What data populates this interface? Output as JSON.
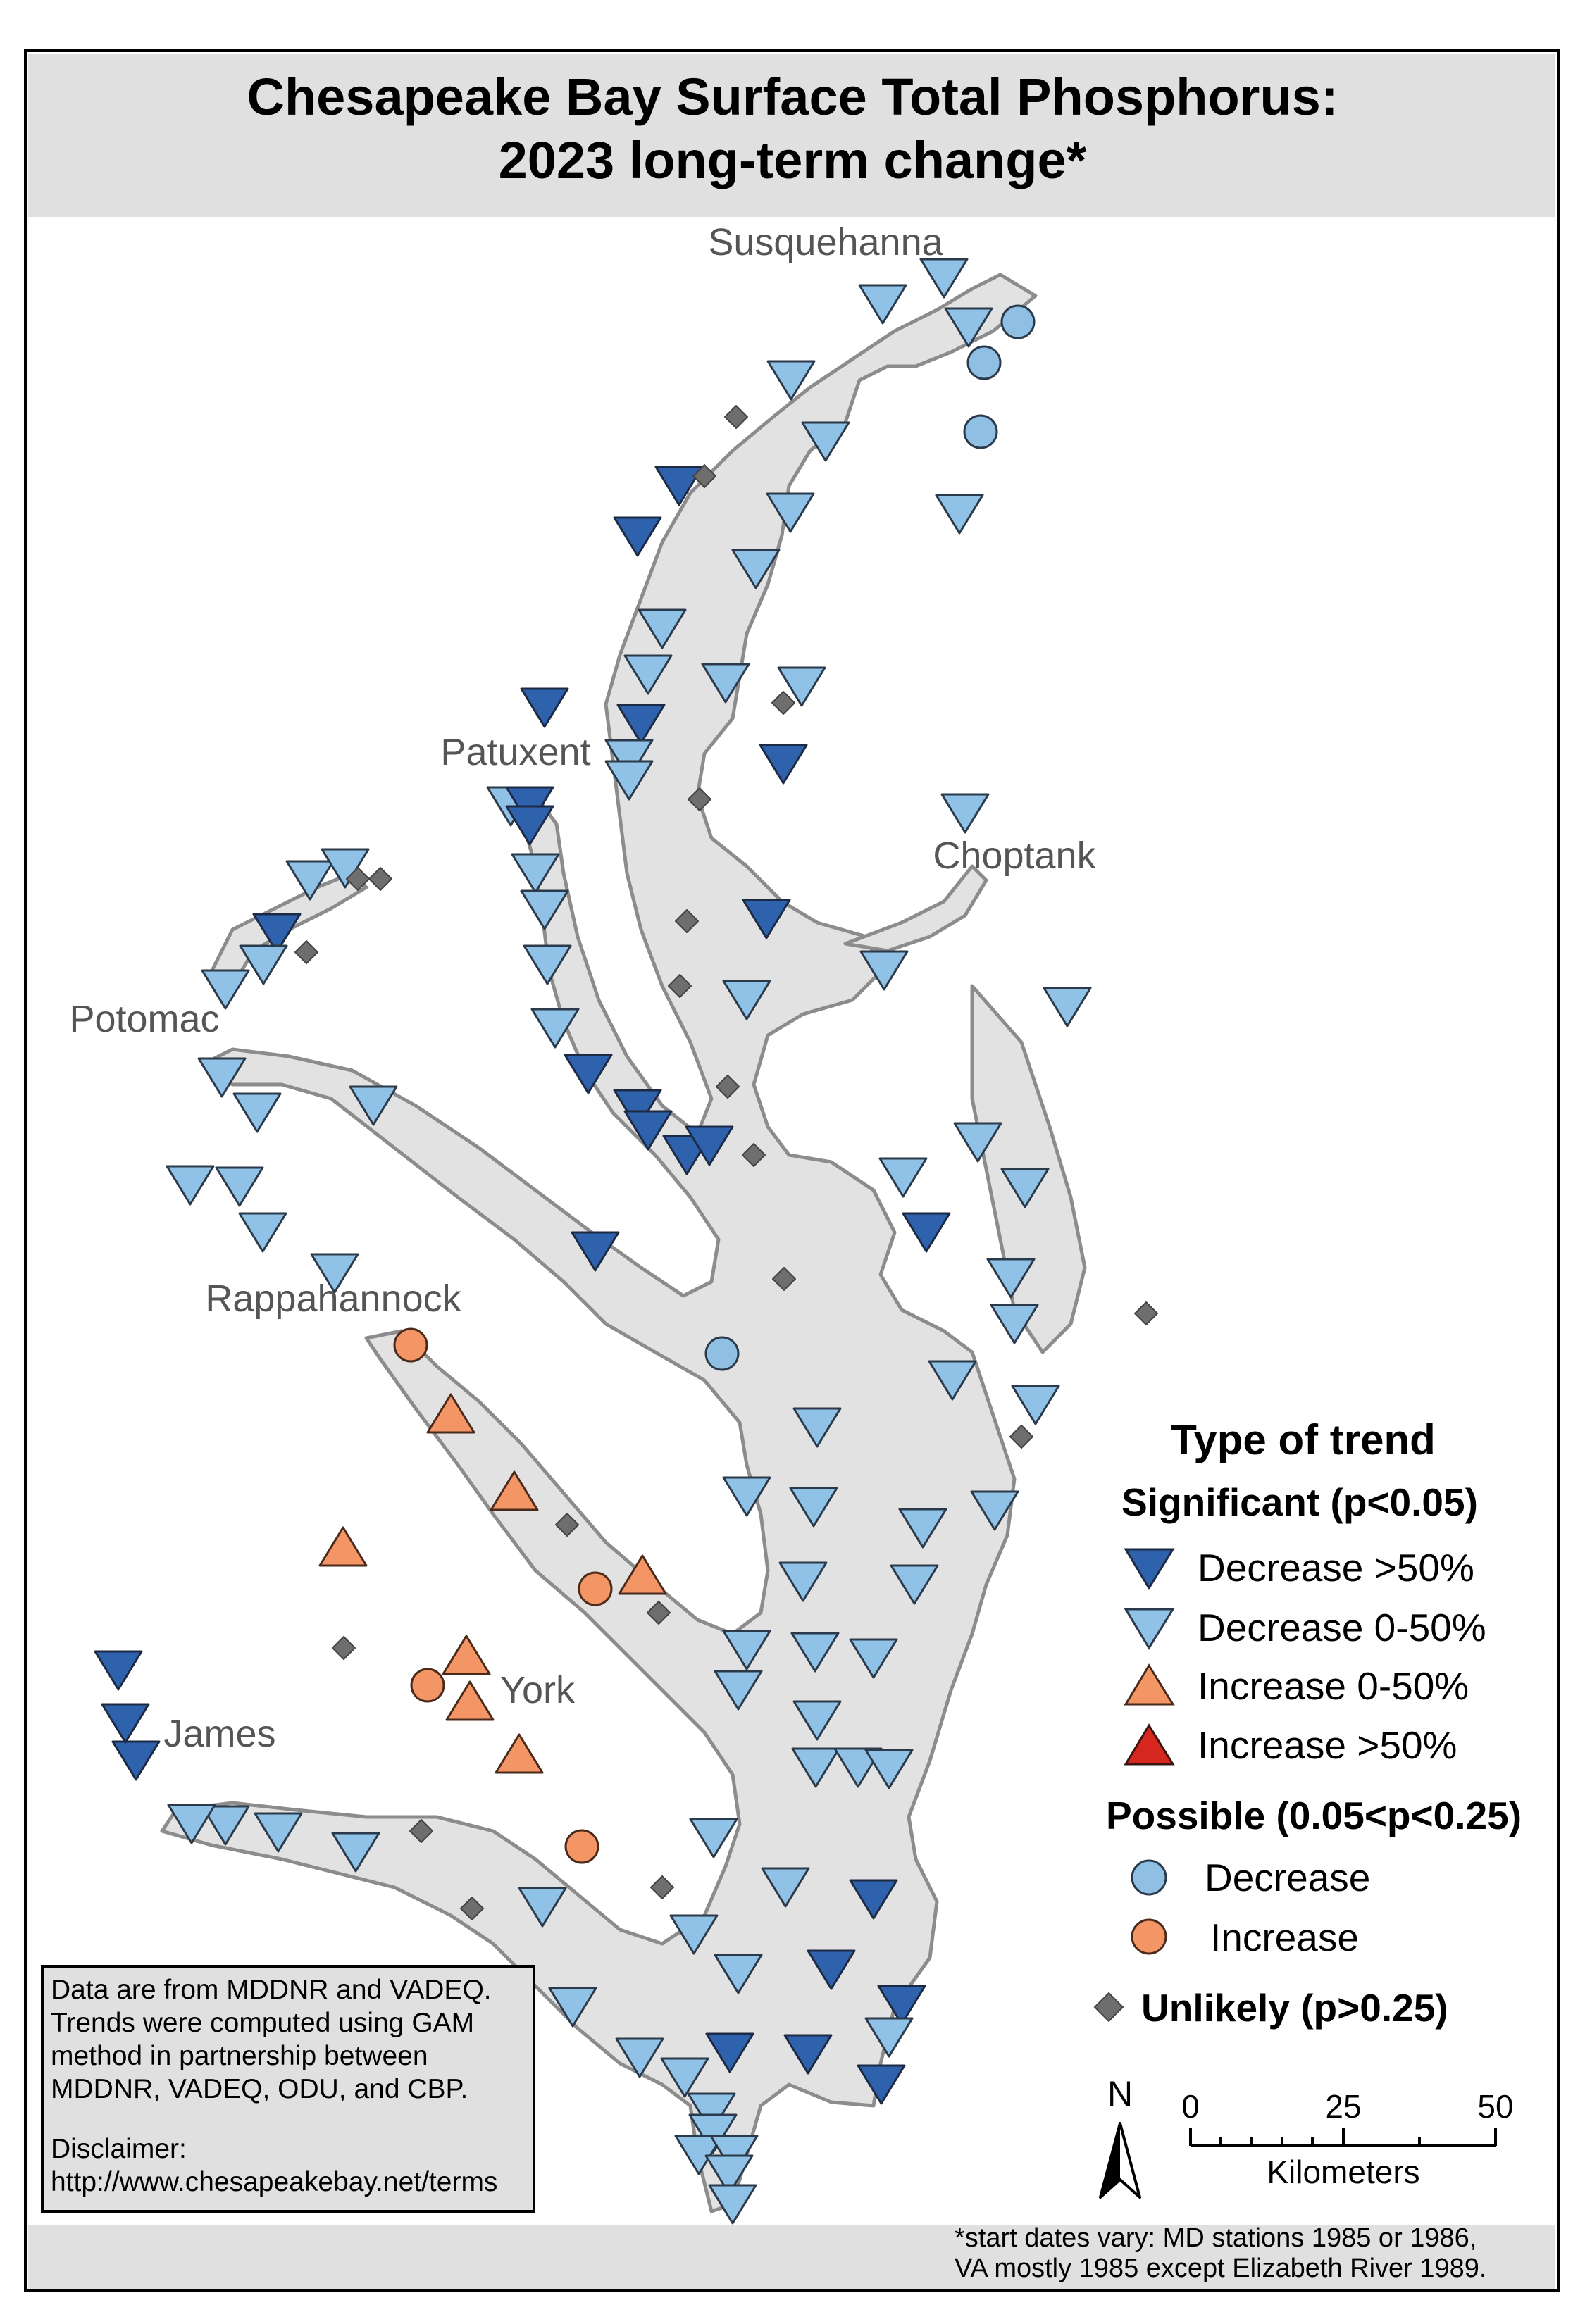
{
  "title": {
    "line1": "Chesapeake Bay Surface Total Phosphorus:",
    "line2": "2023 long-term change*"
  },
  "rivers": {
    "susquehanna": "Susquehanna",
    "patuxent": "Patuxent",
    "choptank": "Choptank",
    "potomac": "Potomac",
    "rappahannock": "Rappahannock",
    "york": "York",
    "james": "James"
  },
  "legend": {
    "heading": "Type of trend",
    "significant": "Significant (p<0.05)",
    "dec_gt50": "Decrease >50%",
    "dec_0_50": "Decrease 0-50%",
    "inc_0_50": "Increase 0-50%",
    "inc_gt50": "Increase >50%",
    "possible": "Possible (0.05<p<0.25)",
    "possible_dec": "Decrease",
    "possible_inc": "Increase",
    "unlikely": "Unlikely (p>0.25)"
  },
  "scalebar": {
    "ticks": [
      "0",
      "25",
      "50"
    ],
    "unit": "Kilometers"
  },
  "north_arrow": {
    "label": "N",
    "icon": "north-arrow-icon"
  },
  "data_note": {
    "lines": [
      "Data are from MDDNR and VADEQ.",
      "Trends were computed using GAM",
      "method in partnership between",
      "MDDNR, VADEQ, ODU, and CBP."
    ],
    "disclaimer_label": "Disclaimer:",
    "disclaimer_url": "http://www.chesapeakebay.net/terms"
  },
  "footnote": {
    "line1": "*start dates vary: MD stations 1985 or 1986,",
    "line2": "VA mostly 1985 except Elizabeth River 1989."
  },
  "colors": {
    "water": "#e2e2e2",
    "shore": "#8c8c8c",
    "title_band": "#e0e0e0",
    "dec_gt50": "#2f62ad",
    "dec_0_50": "#90c1e6",
    "inc_0_50": "#f39565",
    "inc_gt50": "#d6271f",
    "possible_dec": "#8fbfe3",
    "possible_inc": "#f39565",
    "unlikely": "#6e6e6e"
  },
  "stations": [
    {
      "t": "dec_0_50",
      "p": [
        1340,
        395
      ]
    },
    {
      "t": "dec_0_50",
      "p": [
        1253,
        432
      ]
    },
    {
      "t": "dec_0_50",
      "p": [
        1375,
        465
      ]
    },
    {
      "t": "possible_dec",
      "p": [
        1445,
        457
      ]
    },
    {
      "t": "possible_dec",
      "p": [
        1397,
        515
      ]
    },
    {
      "t": "dec_0_50",
      "p": [
        1123,
        540
      ]
    },
    {
      "t": "unlikely",
      "p": [
        1045,
        592
      ]
    },
    {
      "t": "dec_0_50",
      "p": [
        1172,
        627
      ]
    },
    {
      "t": "possible_dec",
      "p": [
        1392,
        613
      ]
    },
    {
      "t": "dec_gt50",
      "p": [
        964,
        690
      ]
    },
    {
      "t": "unlikely",
      "p": [
        1000,
        676
      ]
    },
    {
      "t": "dec_0_50",
      "p": [
        1122,
        728
      ]
    },
    {
      "t": "dec_0_50",
      "p": [
        1362,
        730
      ]
    },
    {
      "t": "dec_gt50",
      "p": [
        905,
        762
      ]
    },
    {
      "t": "dec_0_50",
      "p": [
        1073,
        808
      ]
    },
    {
      "t": "dec_0_50",
      "p": [
        940,
        893
      ]
    },
    {
      "t": "dec_0_50",
      "p": [
        920,
        958
      ]
    },
    {
      "t": "dec_0_50",
      "p": [
        1030,
        970
      ]
    },
    {
      "t": "dec_0_50",
      "p": [
        1138,
        975
      ]
    },
    {
      "t": "dec_gt50",
      "p": [
        773,
        1005
      ]
    },
    {
      "t": "dec_gt50",
      "p": [
        910,
        1028
      ]
    },
    {
      "t": "unlikely",
      "p": [
        1112,
        998
      ]
    },
    {
      "t": "dec_0_50",
      "p": [
        893,
        1078
      ]
    },
    {
      "t": "dec_0_50",
      "p": [
        893,
        1108
      ]
    },
    {
      "t": "dec_gt50",
      "p": [
        1112,
        1085
      ]
    },
    {
      "t": "dec_0_50",
      "p": [
        725,
        1145
      ]
    },
    {
      "t": "dec_gt50",
      "p": [
        752,
        1145
      ]
    },
    {
      "t": "dec_gt50",
      "p": [
        752,
        1172
      ]
    },
    {
      "t": "unlikely",
      "p": [
        993,
        1135
      ]
    },
    {
      "t": "dec_0_50",
      "p": [
        1370,
        1155
      ]
    },
    {
      "t": "dec_0_50",
      "p": [
        760,
        1240
      ]
    },
    {
      "t": "dec_0_50",
      "p": [
        773,
        1292
      ]
    },
    {
      "t": "unlikely",
      "p": [
        975,
        1308
      ]
    },
    {
      "t": "dec_gt50",
      "p": [
        1088,
        1305
      ]
    },
    {
      "t": "dec_0_50",
      "p": [
        1255,
        1378
      ]
    },
    {
      "t": "dec_0_50",
      "p": [
        777,
        1370
      ]
    },
    {
      "t": "unlikely",
      "p": [
        965,
        1400
      ]
    },
    {
      "t": "dec_0_50",
      "p": [
        1060,
        1420
      ]
    },
    {
      "t": "dec_0_50",
      "p": [
        1515,
        1430
      ]
    },
    {
      "t": "dec_0_50",
      "p": [
        788,
        1460
      ]
    },
    {
      "t": "dec_gt50",
      "p": [
        835,
        1525
      ]
    },
    {
      "t": "unlikely",
      "p": [
        1033,
        1543
      ]
    },
    {
      "t": "dec_gt50",
      "p": [
        905,
        1575
      ]
    },
    {
      "t": "dec_gt50",
      "p": [
        920,
        1605
      ]
    },
    {
      "t": "dec_gt50",
      "p": [
        975,
        1640
      ]
    },
    {
      "t": "dec_gt50",
      "p": [
        1007,
        1627
      ]
    },
    {
      "t": "unlikely",
      "p": [
        1070,
        1640
      ]
    },
    {
      "t": "dec_0_50",
      "p": [
        1282,
        1672
      ]
    },
    {
      "t": "dec_0_50",
      "p": [
        1388,
        1622
      ]
    },
    {
      "t": "dec_0_50",
      "p": [
        1455,
        1687
      ]
    },
    {
      "t": "dec_gt50",
      "p": [
        1315,
        1750
      ]
    },
    {
      "t": "dec_gt50",
      "p": [
        845,
        1777
      ]
    },
    {
      "t": "unlikely",
      "p": [
        1113,
        1816
      ]
    },
    {
      "t": "dec_0_50",
      "p": [
        1435,
        1815
      ]
    },
    {
      "t": "dec_0_50",
      "p": [
        1440,
        1880
      ]
    },
    {
      "t": "unlikely",
      "p": [
        1627,
        1865
      ]
    },
    {
      "t": "possible_dec",
      "p": [
        1025,
        1922
      ]
    },
    {
      "t": "dec_0_50",
      "p": [
        1352,
        1960
      ]
    },
    {
      "t": "dec_0_50",
      "p": [
        1470,
        1995
      ]
    },
    {
      "t": "unlikely",
      "p": [
        1450,
        2040
      ]
    },
    {
      "t": "dec_0_50",
      "p": [
        1160,
        2027
      ]
    },
    {
      "t": "dec_0_50",
      "p": [
        1060,
        2125
      ]
    },
    {
      "t": "dec_0_50",
      "p": [
        1155,
        2140
      ]
    },
    {
      "t": "dec_0_50",
      "p": [
        1310,
        2170
      ]
    },
    {
      "t": "dec_0_50",
      "p": [
        1412,
        2145
      ]
    },
    {
      "t": "dec_0_50",
      "p": [
        1140,
        2246
      ]
    },
    {
      "t": "dec_0_50",
      "p": [
        1298,
        2250
      ]
    },
    {
      "t": "dec_0_50",
      "p": [
        1060,
        2343
      ]
    },
    {
      "t": "dec_0_50",
      "p": [
        1157,
        2346
      ]
    },
    {
      "t": "dec_0_50",
      "p": [
        1240,
        2355
      ]
    },
    {
      "t": "dec_0_50",
      "p": [
        1048,
        2400
      ]
    },
    {
      "t": "dec_0_50",
      "p": [
        1160,
        2443
      ]
    },
    {
      "t": "dec_0_50",
      "p": [
        1158,
        2510
      ]
    },
    {
      "t": "dec_0_50",
      "p": [
        1218,
        2510
      ]
    },
    {
      "t": "dec_0_50",
      "p": [
        1262,
        2512
      ]
    },
    {
      "t": "dec_0_50",
      "p": [
        1013,
        2610
      ]
    },
    {
      "t": "dec_0_50",
      "p": [
        1115,
        2680
      ]
    },
    {
      "t": "dec_gt50",
      "p": [
        1240,
        2697
      ]
    },
    {
      "t": "dec_0_50",
      "p": [
        985,
        2747
      ]
    },
    {
      "t": "dec_0_50",
      "p": [
        1048,
        2803
      ]
    },
    {
      "t": "dec_gt50",
      "p": [
        1180,
        2797
      ]
    },
    {
      "t": "dec_gt50",
      "p": [
        1280,
        2847
      ]
    },
    {
      "t": "dec_0_50",
      "p": [
        1262,
        2893
      ]
    },
    {
      "t": "dec_gt50",
      "p": [
        1036,
        2915
      ]
    },
    {
      "t": "dec_gt50",
      "p": [
        1147,
        2917
      ]
    },
    {
      "t": "dec_0_50",
      "p": [
        972,
        2950
      ]
    },
    {
      "t": "dec_gt50",
      "p": [
        1251,
        2960
      ]
    },
    {
      "t": "dec_0_50",
      "p": [
        1010,
        3000
      ]
    },
    {
      "t": "dec_0_50",
      "p": [
        1012,
        3030
      ]
    },
    {
      "t": "dec_0_50",
      "p": [
        992,
        3060
      ]
    },
    {
      "t": "dec_0_50",
      "p": [
        1042,
        3060
      ]
    },
    {
      "t": "dec_0_50",
      "p": [
        1035,
        3088
      ]
    },
    {
      "t": "dec_0_50",
      "p": [
        1040,
        3130
      ]
    },
    {
      "t": "dec_0_50",
      "p": [
        908,
        2922
      ]
    },
    {
      "t": "dec_0_50",
      "p": [
        813,
        2850
      ]
    },
    {
      "t": "dec_0_50",
      "p": [
        770,
        2708
      ]
    },
    {
      "t": "unlikely",
      "p": [
        940,
        2680
      ]
    },
    {
      "t": "unlikely",
      "p": [
        670,
        2710
      ]
    },
    {
      "t": "possible_inc",
      "p": [
        826,
        2622
      ]
    },
    {
      "t": "unlikely",
      "p": [
        598,
        2600
      ]
    },
    {
      "t": "dec_0_50",
      "p": [
        505,
        2630
      ]
    },
    {
      "t": "dec_0_50",
      "p": [
        395,
        2602
      ]
    },
    {
      "t": "dec_0_50",
      "p": [
        320,
        2592
      ]
    },
    {
      "t": "dec_0_50",
      "p": [
        272,
        2590
      ]
    },
    {
      "t": "dec_gt50",
      "p": [
        193,
        2500
      ]
    },
    {
      "t": "dec_gt50",
      "p": [
        178,
        2447
      ]
    },
    {
      "t": "dec_gt50",
      "p": [
        168,
        2372
      ]
    },
    {
      "t": "inc_0_50",
      "p": [
        737,
        2490
      ]
    },
    {
      "t": "inc_0_50",
      "p": [
        667,
        2415
      ]
    },
    {
      "t": "inc_0_50",
      "p": [
        662,
        2350
      ]
    },
    {
      "t": "possible_inc",
      "p": [
        607,
        2393
      ]
    },
    {
      "t": "unlikely",
      "p": [
        488,
        2340
      ]
    },
    {
      "t": "inc_0_50",
      "p": [
        487,
        2196
      ]
    },
    {
      "t": "possible_inc",
      "p": [
        845,
        2256
      ]
    },
    {
      "t": "inc_0_50",
      "p": [
        912,
        2236
      ]
    },
    {
      "t": "unlikely",
      "p": [
        935,
        2290
      ]
    },
    {
      "t": "unlikely",
      "p": [
        805,
        2165
      ]
    },
    {
      "t": "inc_0_50",
      "p": [
        730,
        2117
      ]
    },
    {
      "t": "inc_0_50",
      "p": [
        640,
        2007
      ]
    },
    {
      "t": "possible_inc",
      "p": [
        583,
        1910
      ]
    },
    {
      "t": "dec_0_50",
      "p": [
        475,
        1808
      ]
    },
    {
      "t": "dec_0_50",
      "p": [
        373,
        1750
      ]
    },
    {
      "t": "dec_0_50",
      "p": [
        340,
        1685
      ]
    },
    {
      "t": "dec_0_50",
      "p": [
        270,
        1683
      ]
    },
    {
      "t": "dec_0_50",
      "p": [
        530,
        1570
      ]
    },
    {
      "t": "dec_0_50",
      "p": [
        365,
        1580
      ]
    },
    {
      "t": "dec_0_50",
      "p": [
        315,
        1530
      ]
    },
    {
      "t": "dec_0_50",
      "p": [
        320,
        1405
      ]
    },
    {
      "t": "dec_gt50",
      "p": [
        393,
        1325
      ]
    },
    {
      "t": "dec_0_50",
      "p": [
        374,
        1370
      ]
    },
    {
      "t": "unlikely",
      "p": [
        435,
        1352
      ]
    },
    {
      "t": "dec_0_50",
      "p": [
        440,
        1250
      ]
    },
    {
      "t": "dec_0_50",
      "p": [
        490,
        1233
      ]
    },
    {
      "t": "unlikely",
      "p": [
        508,
        1248
      ]
    },
    {
      "t": "unlikely",
      "p": [
        540,
        1248
      ]
    }
  ]
}
